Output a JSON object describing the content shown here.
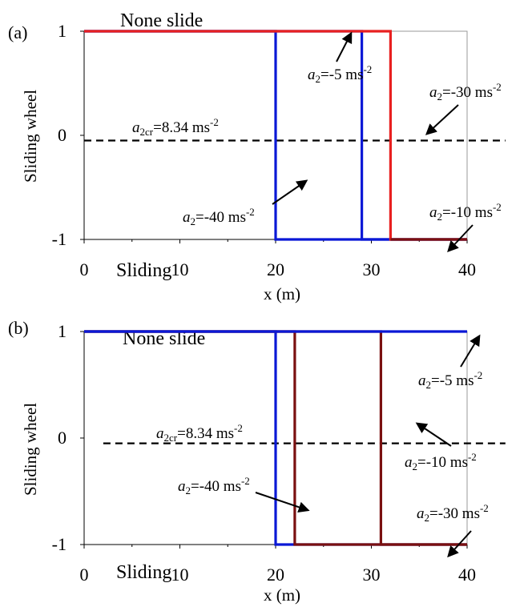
{
  "charts": [
    {
      "panel": "(a)",
      "top_label": "None slide",
      "bottom_label": "Sliding",
      "ylabel": "Sliding wheel",
      "xlabel": "x (m)",
      "xticks": [
        "0",
        "10",
        "20",
        "30",
        "40"
      ],
      "yticks": [
        "1",
        "0",
        "-1"
      ],
      "annotations": [
        {
          "id": "a2-5",
          "text": "=-5 ms",
          "sym": "a",
          "sub": "2",
          "sup": "-2"
        },
        {
          "id": "a2-30",
          "text": "=-30 ms",
          "sym": "a",
          "sub": "2",
          "sup": "-2"
        },
        {
          "id": "a2cr",
          "text": "=8.34 ms",
          "sym": "a",
          "sub": "2cr",
          "sup": "-2"
        },
        {
          "id": "a2-40",
          "text": "=-40 ms",
          "sym": "a",
          "sub": "2",
          "sup": "-2"
        },
        {
          "id": "a2-10",
          "text": "=-10 ms",
          "sym": "a",
          "sub": "2",
          "sup": "-2"
        }
      ]
    },
    {
      "panel": "(b)",
      "top_label": "None slide",
      "bottom_label": "Sliding",
      "ylabel": "Sliding wheel",
      "xlabel": "x (m)",
      "xticks": [
        "0",
        "10",
        "20",
        "30",
        "40"
      ],
      "yticks": [
        "1",
        "0",
        "-1"
      ],
      "annotations": [
        {
          "id": "a2-5",
          "text": "=-5 ms",
          "sym": "a",
          "sub": "2",
          "sup": "-2"
        },
        {
          "id": "a2cr",
          "text": "=8.34 ms",
          "sym": "a",
          "sub": "2cr",
          "sup": "-2"
        },
        {
          "id": "a2-10",
          "text": "=-10 ms",
          "sym": "a",
          "sub": "2",
          "sup": "-2"
        },
        {
          "id": "a2-40",
          "text": "=-40 ms",
          "sym": "a",
          "sub": "2",
          "sup": "-2"
        },
        {
          "id": "a2-30",
          "text": "=-30 ms",
          "sym": "a",
          "sub": "2",
          "sup": "-2"
        }
      ]
    }
  ],
  "chart_data": [
    {
      "type": "line",
      "panel": "(a)",
      "xlabel": "x (m)",
      "ylabel": "Sliding wheel",
      "xlim": [
        0,
        40
      ],
      "ylim": [
        -1,
        1
      ],
      "colors": {
        "blue": "#0a18d6",
        "red": "#e82020",
        "darkred": "#7a1010",
        "reference": "#000000"
      },
      "series": [
        {
          "name": "a2=-40 ms-2",
          "color": "#0a18d6",
          "x": [
            0,
            20,
            20,
            40
          ],
          "y": [
            1,
            1,
            -1,
            -1
          ]
        },
        {
          "name": "a2=-5 ms-2",
          "color": "#0a18d6",
          "x": [
            0,
            29,
            29,
            40
          ],
          "y": [
            1,
            1,
            -1,
            -1
          ]
        },
        {
          "name": "a2=-30 ms-2",
          "color": "#e82020",
          "x": [
            0,
            32,
            32,
            40
          ],
          "y": [
            1,
            1,
            -1,
            -1
          ]
        },
        {
          "name": "a2=-10 ms-2",
          "color": "#7a1010",
          "x": [
            32,
            40
          ],
          "y": [
            -1,
            -1
          ]
        }
      ],
      "reference_line": {
        "name": "a2cr=8.34 ms-2",
        "y": -0.05,
        "x": [
          0,
          44
        ],
        "style": "dashed"
      }
    },
    {
      "type": "line",
      "panel": "(b)",
      "xlabel": "x (m)",
      "ylabel": "Sliding wheel",
      "xlim": [
        0,
        40
      ],
      "ylim": [
        -1,
        1
      ],
      "colors": {
        "blue": "#0a18d6",
        "darkred": "#7a1010",
        "reference": "#000000"
      },
      "series": [
        {
          "name": "a2=-40 ms-2",
          "color": "#0a18d6",
          "x": [
            0,
            20,
            20,
            40
          ],
          "y": [
            1,
            1,
            -1,
            -1
          ]
        },
        {
          "name": "a2=-30 ms-2",
          "color": "#7a1010",
          "x": [
            0,
            22,
            22,
            40
          ],
          "y": [
            1,
            1,
            -1,
            -1
          ]
        },
        {
          "name": "a2=-10 ms-2",
          "color": "#7a1010",
          "x": [
            0,
            31,
            31,
            40
          ],
          "y": [
            1,
            1,
            -1,
            -1
          ]
        },
        {
          "name": "a2=-5 ms-2",
          "color": "#0a18d6",
          "x": [
            0,
            40
          ],
          "y": [
            1,
            1
          ]
        }
      ],
      "reference_line": {
        "name": "a2cr=8.34 ms-2",
        "y": -0.05,
        "x": [
          2,
          44
        ],
        "style": "dashed"
      }
    }
  ]
}
